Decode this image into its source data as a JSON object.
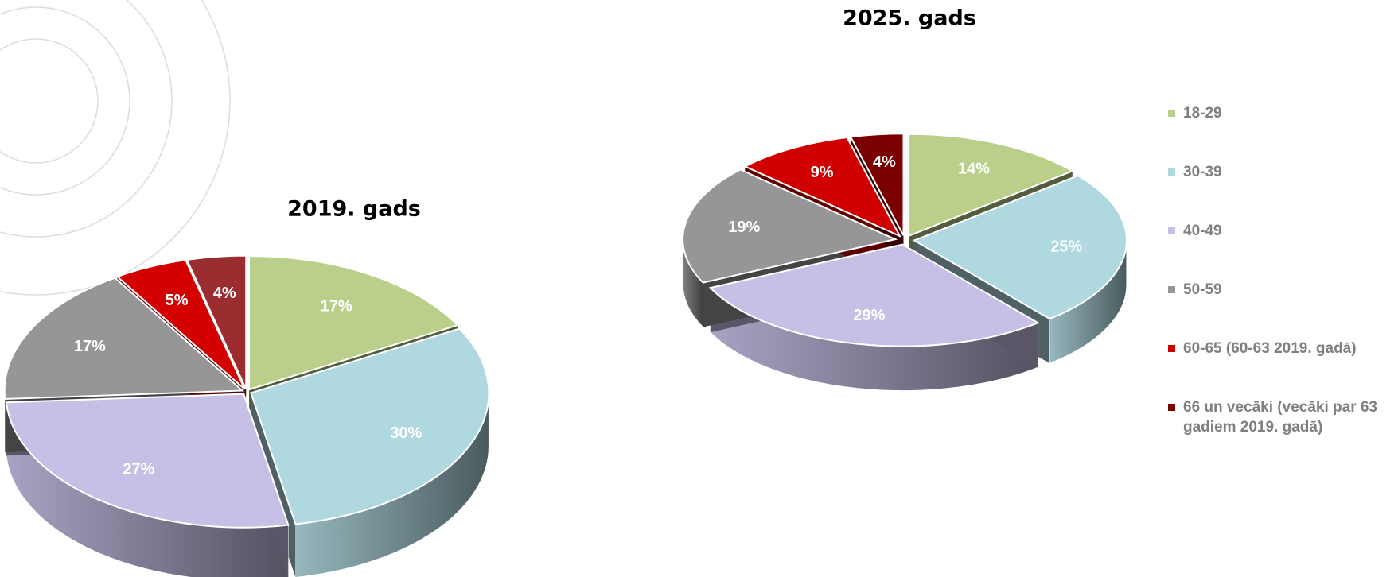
{
  "chart_data": [
    {
      "type": "pie",
      "title": "2019. gads",
      "values": [
        17,
        30,
        27,
        17,
        5,
        4
      ],
      "value_labels": [
        "17%",
        "30%",
        "27%",
        "17%",
        "5%",
        "4%"
      ],
      "colors": [
        "#b9cf8a",
        "#b0d8e0",
        "#c7c0e6",
        "#969696",
        "#d40000",
        "#9b2d30"
      ]
    },
    {
      "type": "pie",
      "title": "2025. gads",
      "categories": [
        "18-29",
        "30-39",
        "40-49",
        "50-59",
        "60-65 (60-63 2019. gadā)",
        "66 un vecāki (vecāki par 63 gadiem 2019. gadā)"
      ],
      "values": [
        14,
        25,
        29,
        19,
        9,
        4
      ],
      "value_labels": [
        "14%",
        "25%",
        "29%",
        "19%",
        "9%",
        "4%"
      ],
      "colors": [
        "#b9cf8a",
        "#b0d8e0",
        "#c7c0e6",
        "#969696",
        "#d00000",
        "#7a0000"
      ],
      "legend": "right"
    }
  ]
}
